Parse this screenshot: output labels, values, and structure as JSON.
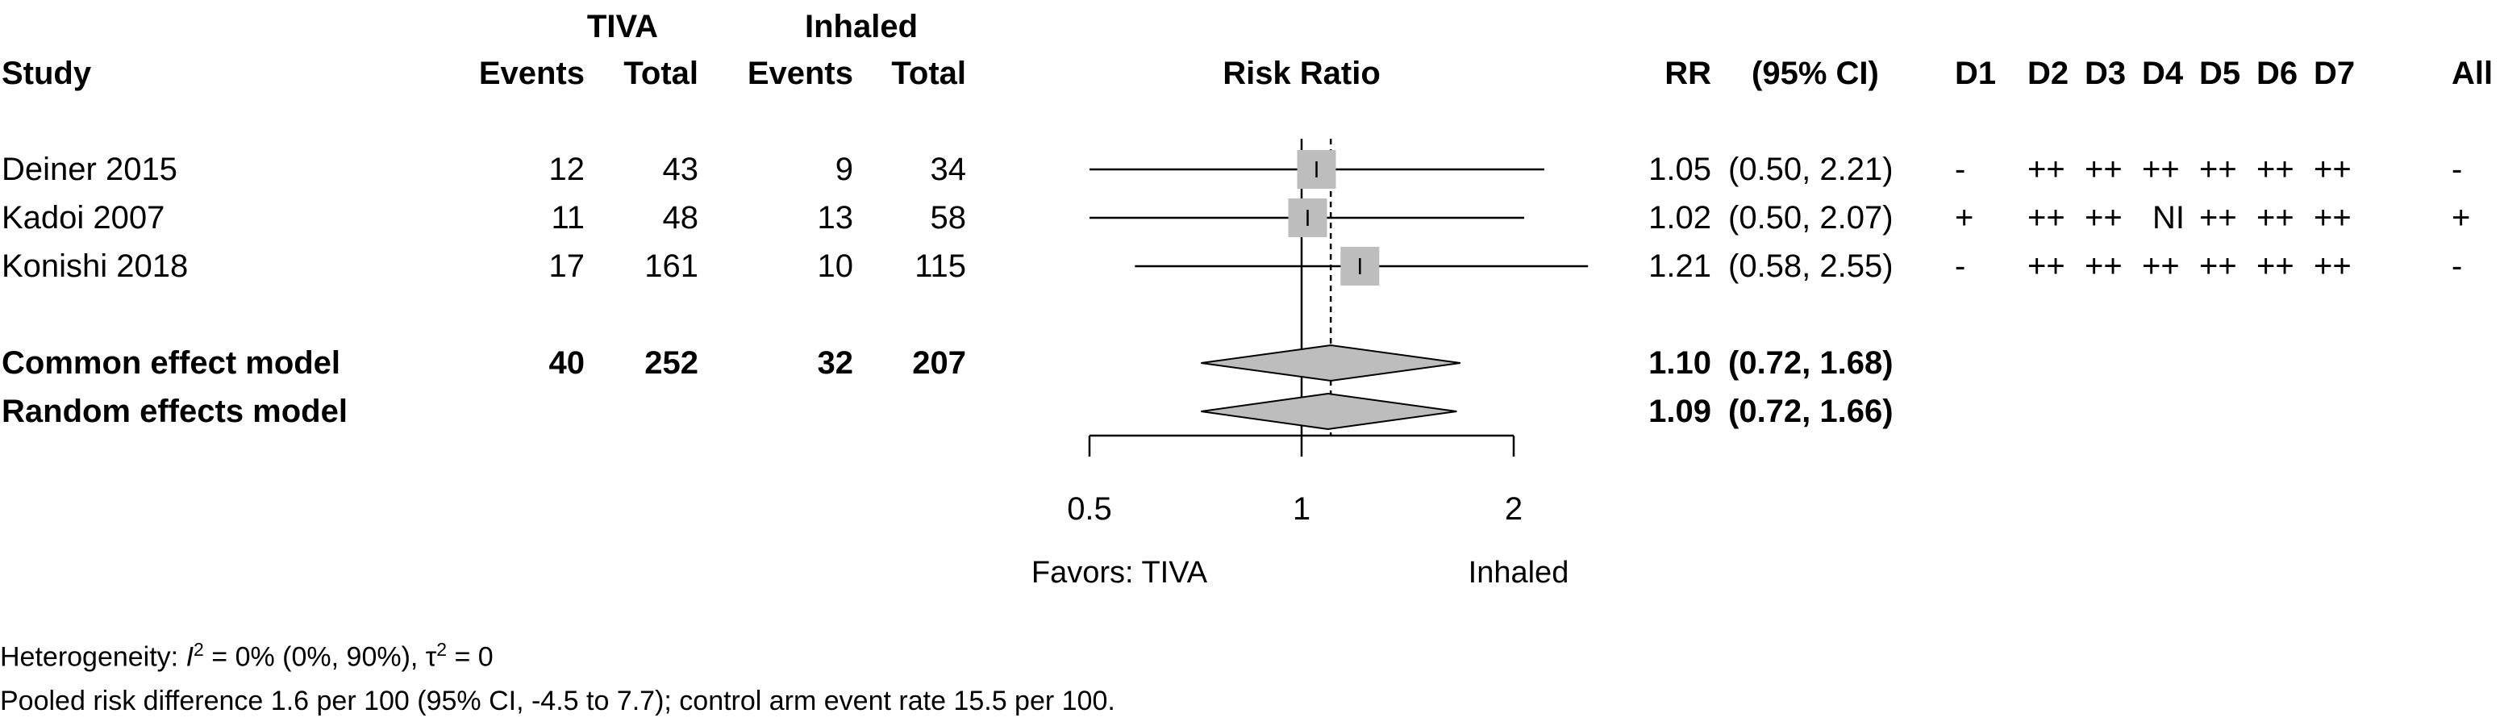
{
  "header": {
    "group1": "TIVA",
    "group2": "Inhaled",
    "study": "Study",
    "events": "Events",
    "total": "Total",
    "risk_ratio": "Risk Ratio",
    "rr": "RR",
    "ci": "(95% CI)",
    "rob": [
      "D1",
      "D2",
      "D3",
      "D4",
      "D5",
      "D6",
      "D7",
      "All"
    ]
  },
  "studies": [
    {
      "name": "Deiner 2015",
      "e1": "12",
      "n1": "43",
      "e2": "9",
      "n2": "34",
      "rr_text": "1.05",
      "ci_text": "(0.50, 2.21)",
      "rob": [
        "-",
        "++",
        "++",
        "++",
        "++",
        "++",
        "++",
        "-"
      ]
    },
    {
      "name": "Kadoi 2007",
      "e1": "11",
      "n1": "48",
      "e2": "13",
      "n2": "58",
      "rr_text": "1.02",
      "ci_text": "(0.50, 2.07)",
      "rob": [
        "+",
        "++",
        "++",
        "NI",
        "++",
        "++",
        "++",
        "+"
      ]
    },
    {
      "name": "Konishi 2018",
      "e1": "17",
      "n1": "161",
      "e2": "10",
      "n2": "115",
      "rr_text": "1.21",
      "ci_text": "(0.58, 2.55)",
      "rob": [
        "-",
        "++",
        "++",
        "++",
        "++",
        "++",
        "++",
        "-"
      ]
    }
  ],
  "models": [
    {
      "name": "Common effect model",
      "e1": "40",
      "n1": "252",
      "e2": "32",
      "n2": "207",
      "rr_text": "1.10",
      "ci_text": "(0.72, 1.68)"
    },
    {
      "name": "Random effects model",
      "rr_text": "1.09",
      "ci_text": "(0.72, 1.66)"
    }
  ],
  "axis": {
    "ticks": [
      "0.5",
      "1",
      "2"
    ],
    "favors_left": "Favors: TIVA",
    "favors_right": "Inhaled"
  },
  "footer": {
    "het_prefix": "Heterogeneity: ",
    "het_i": "I",
    "het_sup": "2",
    "het_rest": " = 0% (0%, 90%), τ",
    "het_sup2": "2",
    "het_end": " = 0",
    "pooled": "Pooled risk difference 1.6 per 100 (95% CI, -4.5 to 7.7); control arm event rate 15.5 per 100."
  },
  "chart_data": {
    "type": "forest",
    "x_scale": "log",
    "xlim": [
      0.5,
      2
    ],
    "xticks": [
      0.5,
      1,
      2
    ],
    "reference_line": 1,
    "studies": [
      {
        "name": "Deiner 2015",
        "rr": 1.05,
        "lower": 0.5,
        "upper": 2.21
      },
      {
        "name": "Kadoi 2007",
        "rr": 1.02,
        "lower": 0.5,
        "upper": 2.07
      },
      {
        "name": "Konishi 2018",
        "rr": 1.21,
        "lower": 0.58,
        "upper": 2.55
      }
    ],
    "pooled": [
      {
        "name": "Common effect model",
        "rr": 1.1,
        "lower": 0.72,
        "upper": 1.68
      },
      {
        "name": "Random effects model",
        "rr": 1.09,
        "lower": 0.72,
        "upper": 1.66
      }
    ],
    "colors": {
      "square": "#bdbdbd",
      "diamond": "#bdbdbd",
      "line": "#000000"
    }
  }
}
